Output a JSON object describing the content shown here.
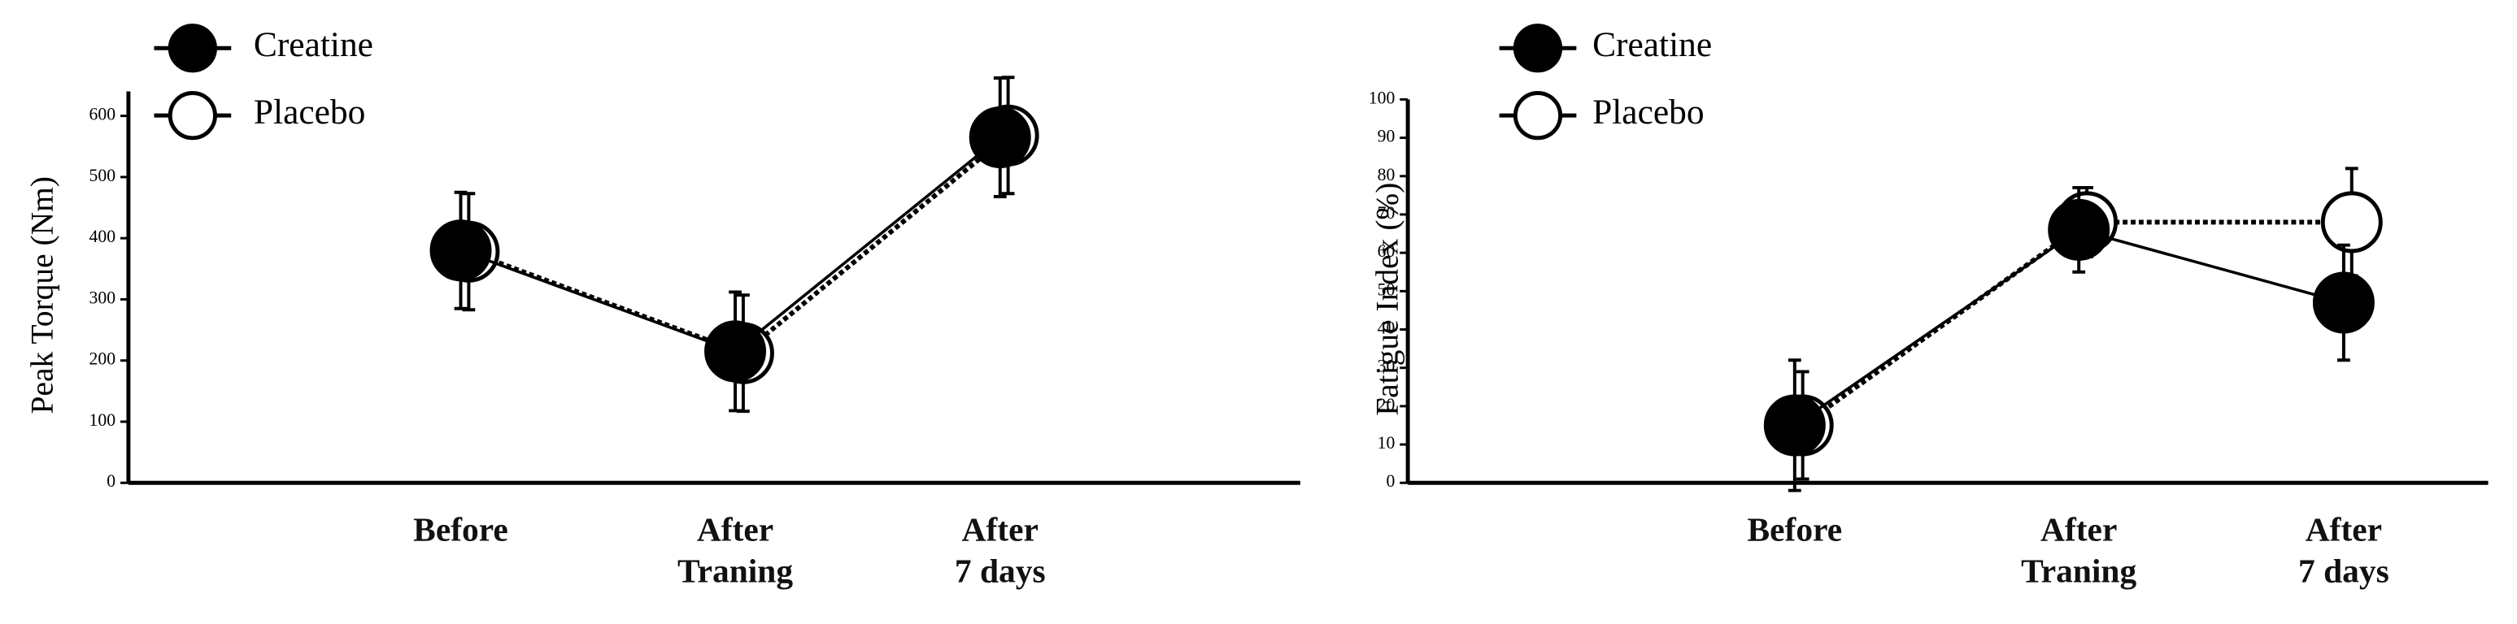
{
  "chart_data": [
    {
      "type": "line",
      "ylabel": "Peak Torque (Nm)",
      "categories": [
        "Before",
        "After\nTraning",
        "After\n7 days"
      ],
      "series": [
        {
          "name": "Placebo",
          "color": "#000000",
          "marker_fill": "#ffffff",
          "dashed": true,
          "values": [
            378,
            212,
            568
          ],
          "errors": [
            95,
            95,
            95
          ]
        },
        {
          "name": "Creatine",
          "color": "#000000",
          "marker_fill": "#000000",
          "dashed": false,
          "values": [
            380,
            215,
            565
          ],
          "errors": [
            95,
            97,
            97
          ]
        }
      ],
      "ylim": [
        0,
        640
      ],
      "yticks": [
        0,
        100,
        200,
        300,
        400,
        500,
        600
      ],
      "grid": false,
      "legend": "upper left"
    },
    {
      "type": "line",
      "ylabel": "Fatigue Index (%)",
      "categories": [
        "Before",
        "After\nTraning",
        "After\n7 days"
      ],
      "series": [
        {
          "name": "Placebo",
          "color": "#000000",
          "marker_fill": "#ffffff",
          "dashed": true,
          "values": [
            15,
            68,
            68
          ],
          "errors": [
            14,
            9,
            14
          ]
        },
        {
          "name": "Creatine",
          "color": "#000000",
          "marker_fill": "#000000",
          "dashed": false,
          "values": [
            15,
            66,
            47
          ],
          "errors": [
            17,
            11,
            15
          ]
        }
      ],
      "ylim": [
        0,
        100
      ],
      "yticks": [
        0,
        10,
        20,
        30,
        40,
        50,
        60,
        70,
        80,
        90,
        100
      ],
      "grid": false,
      "legend": "upper left"
    }
  ]
}
